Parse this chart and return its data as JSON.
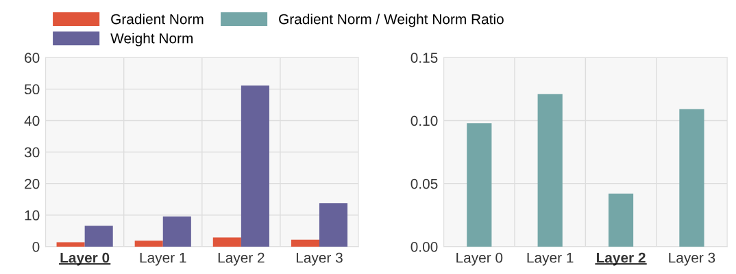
{
  "chart_data": [
    {
      "type": "bar",
      "categories": [
        "Layer 0",
        "Layer 1",
        "Layer 2",
        "Layer 3"
      ],
      "series": [
        {
          "name": "Gradient Norm",
          "color": "#e0553a",
          "values": [
            1.4,
            1.9,
            2.9,
            2.2
          ]
        },
        {
          "name": "Weight Norm",
          "color": "#66629a",
          "values": [
            6.6,
            9.6,
            51.1,
            13.8
          ]
        }
      ],
      "ylim": [
        0,
        60
      ],
      "yticks": [
        0,
        10,
        20,
        30,
        40,
        50,
        60
      ],
      "grid": true,
      "legend": "top"
    },
    {
      "type": "bar",
      "categories": [
        "Layer 0",
        "Layer 1",
        "Layer 2",
        "Layer 3"
      ],
      "series": [
        {
          "name": "Gradient Norm / Weight Norm Ratio",
          "color": "#74a6a7",
          "values": [
            0.098,
            0.121,
            0.042,
            0.109
          ]
        }
      ],
      "ylim": [
        0,
        0.15
      ],
      "yticks": [
        {
          "value": 0,
          "label": "0.00"
        },
        {
          "value": 0.05,
          "label": "0.05"
        },
        {
          "value": 0.1,
          "label": "0.10"
        },
        {
          "value": 0.15,
          "label": "0.15"
        }
      ],
      "grid": true,
      "legend": "top"
    }
  ]
}
